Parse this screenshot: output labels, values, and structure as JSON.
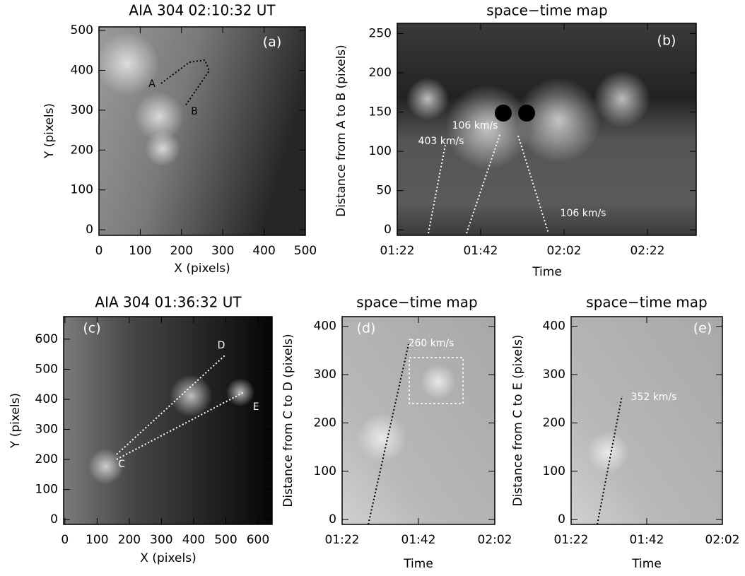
{
  "chart_data": [
    {
      "type": "image",
      "title": "AIA 304 02:10:32 UT",
      "xlabel": "X (pixels)",
      "ylabel": "Y (pixels)",
      "xlim": [
        0,
        500
      ],
      "ylim": [
        -14,
        509
      ],
      "xticks": [
        0,
        100,
        200,
        300,
        400,
        500
      ],
      "yticks": [
        0,
        100,
        200,
        300,
        400,
        500
      ],
      "annotations": [
        "(a)",
        "A",
        "B"
      ]
    },
    {
      "type": "image",
      "title": "space−time map",
      "xlabel": "Time",
      "ylabel": "Distance from A to B (pixels)",
      "xlim": [
        82,
        153.7
      ],
      "ylim": [
        -7,
        263
      ],
      "xticks": [
        {
          "value": 82,
          "label": "01:22"
        },
        {
          "value": 102,
          "label": "01:42"
        },
        {
          "value": 122,
          "label": "02:02"
        },
        {
          "value": 142,
          "label": "02:22"
        }
      ],
      "yticks": [
        0,
        50,
        100,
        150,
        200,
        250
      ],
      "annotations": [
        "(b)",
        "403 km/s",
        "106 km/s",
        "106 km/s"
      ]
    },
    {
      "type": "image",
      "title": "AIA 304 01:36:32 UT",
      "xlabel": "X (pixels)",
      "ylabel": "Y (pixels)",
      "xlim": [
        -4,
        644
      ],
      "ylim": [
        -16,
        675
      ],
      "xticks": [
        0,
        100,
        200,
        300,
        400,
        500,
        600
      ],
      "yticks": [
        0,
        100,
        200,
        300,
        400,
        500,
        600
      ],
      "annotations": [
        "(c)",
        "C",
        "D",
        "E"
      ]
    },
    {
      "type": "image",
      "title": "space−time map",
      "xlabel": "Time",
      "ylabel": "Distance from C to D (pixels)",
      "xlim": [
        82,
        122
      ],
      "ylim": [
        -10,
        420
      ],
      "xticks": [
        {
          "value": 82,
          "label": "01:22"
        },
        {
          "value": 102,
          "label": "01:42"
        },
        {
          "value": 122,
          "label": "02:02"
        }
      ],
      "yticks": [
        0,
        100,
        200,
        300,
        400
      ],
      "annotations": [
        "(d)",
        "260 km/s"
      ]
    },
    {
      "type": "image",
      "title": "space−time map",
      "xlabel": "Time",
      "ylabel": "Distance from C to E (pixels)",
      "xlim": [
        82,
        122
      ],
      "ylim": [
        -10,
        420
      ],
      "xticks": [
        {
          "value": 82,
          "label": "01:22"
        },
        {
          "value": 102,
          "label": "01:42"
        },
        {
          "value": 122,
          "label": "02:02"
        }
      ],
      "yticks": [
        0,
        100,
        200,
        300,
        400
      ],
      "annotations": [
        "(e)",
        "352 km/s"
      ]
    }
  ]
}
